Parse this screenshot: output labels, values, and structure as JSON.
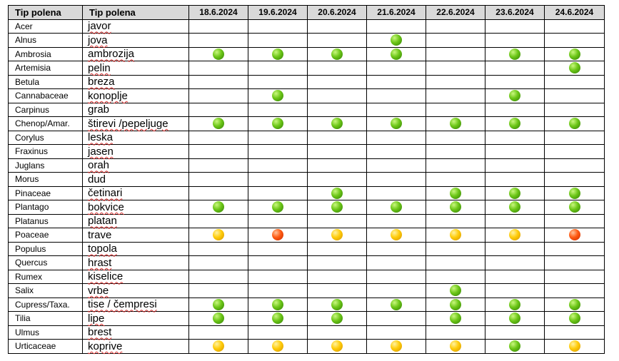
{
  "header": {
    "col1": "Tip polena",
    "col2": "Tip polena",
    "dates": [
      "18.6.2024",
      "19.6.2024",
      "20.6.2024",
      "21.6.2024",
      "22.6.2024",
      "23.6.2024",
      "24.6.2024"
    ]
  },
  "colors": {
    "green": "#6cc617",
    "yellow": "#ffcc0a",
    "red": "#ff5a12",
    "header_bg": "#d9d9d9",
    "spell_underline": "#d33"
  },
  "rows": [
    {
      "latin": "Acer",
      "local": "javor",
      "levels": [
        "",
        "",
        "",
        "",
        "",
        "",
        ""
      ]
    },
    {
      "latin": "Alnus",
      "local": "jova",
      "levels": [
        "",
        "",
        "",
        "green",
        "",
        "",
        ""
      ]
    },
    {
      "latin": "Ambrosia",
      "local": "ambrozija",
      "levels": [
        "green",
        "green",
        "green",
        "green",
        "",
        "green",
        "green"
      ]
    },
    {
      "latin": "Artemisia",
      "local": "pelin",
      "levels": [
        "",
        "",
        "",
        "",
        "",
        "",
        "green"
      ]
    },
    {
      "latin": "Betula",
      "local": "breza",
      "levels": [
        "",
        "",
        "",
        "",
        "",
        "",
        ""
      ]
    },
    {
      "latin": "Cannabaceae",
      "local": "konoplje",
      "levels": [
        "",
        "green",
        "",
        "",
        "",
        "green",
        ""
      ]
    },
    {
      "latin": "Carpinus",
      "local": "grab",
      "levels": [
        "",
        "",
        "",
        "",
        "",
        "",
        ""
      ]
    },
    {
      "latin": "Chenop/Amar.",
      "local": "štirevi /pepeljuge",
      "levels": [
        "green",
        "green",
        "green",
        "green",
        "green",
        "green",
        "green"
      ]
    },
    {
      "latin": "Corylus",
      "local": "leska",
      "levels": [
        "",
        "",
        "",
        "",
        "",
        "",
        ""
      ]
    },
    {
      "latin": "Fraxinus",
      "local": "jasen",
      "levels": [
        "",
        "",
        "",
        "",
        "",
        "",
        ""
      ]
    },
    {
      "latin": "Juglans",
      "local": "orah",
      "levels": [
        "",
        "",
        "",
        "",
        "",
        "",
        ""
      ]
    },
    {
      "latin": "Morus",
      "local": "dud",
      "levels": [
        "",
        "",
        "",
        "",
        "",
        "",
        ""
      ]
    },
    {
      "latin": "Pinaceae",
      "local": "četinari",
      "levels": [
        "",
        "",
        "green",
        "",
        "green",
        "green",
        "green"
      ]
    },
    {
      "latin": "Plantago",
      "local": "bokvice",
      "levels": [
        "green",
        "green",
        "green",
        "green",
        "green",
        "green",
        "green"
      ]
    },
    {
      "latin": "Platanus",
      "local": "platan",
      "levels": [
        "",
        "",
        "",
        "",
        "",
        "",
        ""
      ]
    },
    {
      "latin": "Poaceae",
      "local": "trave",
      "levels": [
        "yellow",
        "red",
        "yellow",
        "yellow",
        "yellow",
        "yellow",
        "red"
      ]
    },
    {
      "latin": "Populus",
      "local": "topola",
      "levels": [
        "",
        "",
        "",
        "",
        "",
        "",
        ""
      ]
    },
    {
      "latin": "Quercus",
      "local": "hrast",
      "levels": [
        "",
        "",
        "",
        "",
        "",
        "",
        ""
      ]
    },
    {
      "latin": "Rumex",
      "local": "kiselice",
      "levels": [
        "",
        "",
        "",
        "",
        "",
        "",
        ""
      ]
    },
    {
      "latin": "Salix",
      "local": "vrbe",
      "levels": [
        "",
        "",
        "",
        "",
        "green",
        "",
        ""
      ]
    },
    {
      "latin": "Cupress/Taxa.",
      "local": "tise / čempresi",
      "levels": [
        "green",
        "green",
        "green",
        "green",
        "green",
        "green",
        "green"
      ]
    },
    {
      "latin": "Tilia",
      "local": "lipe",
      "levels": [
        "green",
        "green",
        "green",
        "",
        "green",
        "green",
        "green"
      ]
    },
    {
      "latin": "Ulmus",
      "local": "brest",
      "levels": [
        "",
        "",
        "",
        "",
        "",
        "",
        ""
      ]
    },
    {
      "latin": "Urticaceae",
      "local": "koprive",
      "levels": [
        "yellow",
        "yellow",
        "yellow",
        "yellow",
        "yellow",
        "green",
        "yellow"
      ]
    }
  ]
}
